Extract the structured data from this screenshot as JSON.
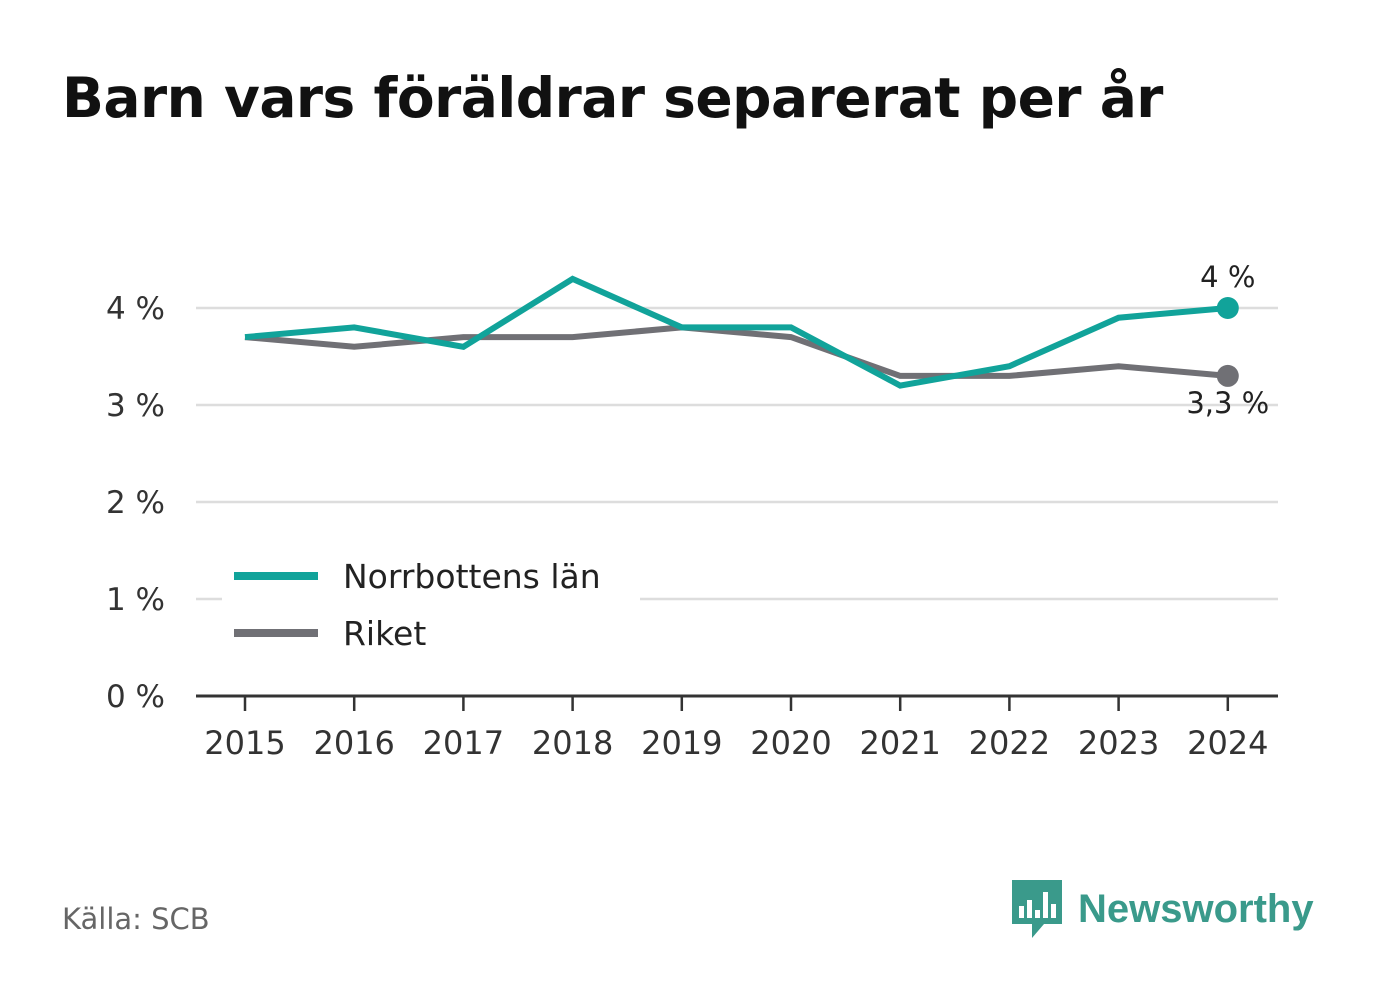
{
  "title": "Barn vars föräldrar separerat per år",
  "source": "Källa: SCB",
  "brand": {
    "name": "Newsworthy",
    "logo_icon": "bar-chart-speech-bubble-icon",
    "color": "#3a9a8b"
  },
  "colors": {
    "norrbotten": "#11a39a",
    "riket": "#707075",
    "grid": "#dddddd",
    "axis": "#333333"
  },
  "chart_data": {
    "type": "line",
    "title": "Barn vars föräldrar separerat per år",
    "x": [
      "2015",
      "2016",
      "2017",
      "2018",
      "2019",
      "2020",
      "2021",
      "2022",
      "2023",
      "2024"
    ],
    "ylim": [
      0,
      4.5
    ],
    "yticks": [
      0,
      1,
      2,
      3,
      4
    ],
    "ytick_labels": [
      "0 %",
      "1 %",
      "2 %",
      "3 %",
      "4 %"
    ],
    "grid": true,
    "legend": "bottom-left",
    "series": [
      {
        "name": "Norrbottens län",
        "values": [
          3.7,
          3.8,
          3.6,
          4.3,
          3.8,
          3.8,
          3.2,
          3.4,
          3.9,
          4.0
        ],
        "end_label": "4 %"
      },
      {
        "name": "Riket",
        "values": [
          3.7,
          3.6,
          3.7,
          3.7,
          3.8,
          3.7,
          3.3,
          3.3,
          3.4,
          3.3
        ],
        "end_label": "3,3 %"
      }
    ]
  }
}
